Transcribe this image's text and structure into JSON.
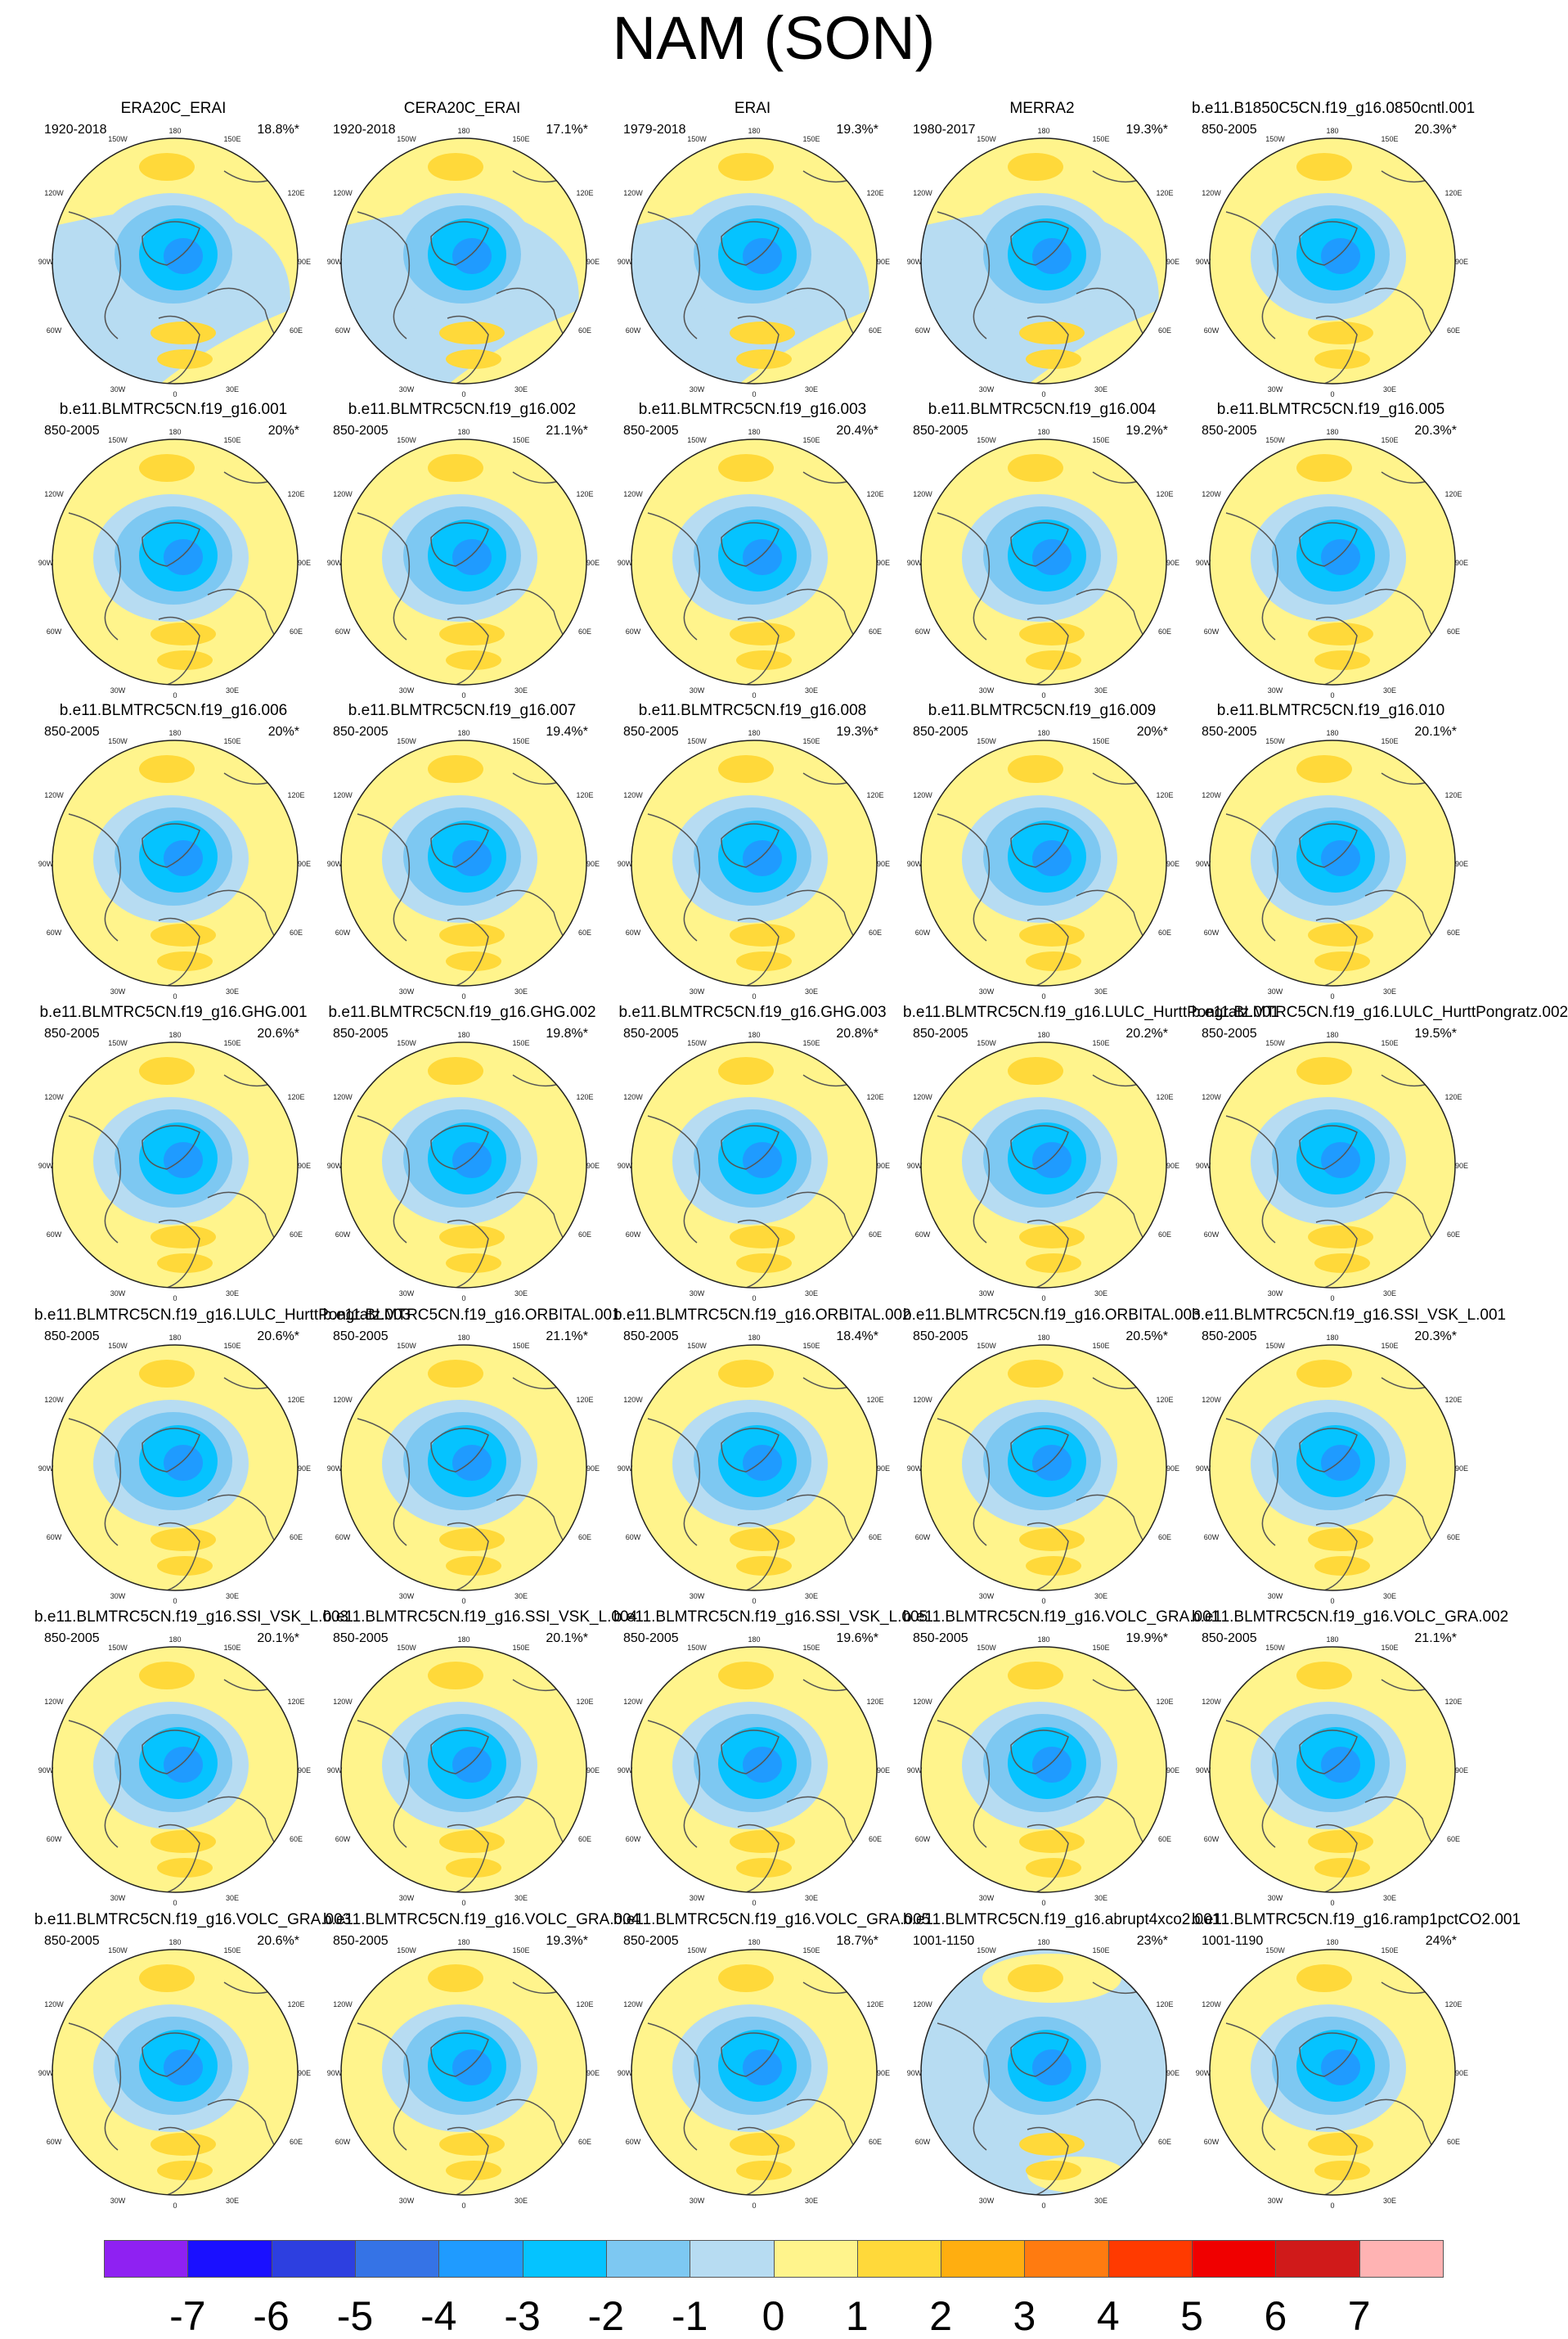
{
  "title": "NAM (SON)",
  "lon_labels": [
    "180",
    "150W",
    "150E",
    "120W",
    "120E",
    "90W",
    "90E",
    "60W",
    "60E",
    "30W",
    "30E",
    "0"
  ],
  "colors": {
    "land_line": "#555555",
    "grid_line": "#9a9a9a",
    "levels": [
      "#8f21f2",
      "#1a10ff",
      "#2d3fe0",
      "#3573e6",
      "#1f9bff",
      "#05c3ff",
      "#7dc8f2",
      "#b7dcf2",
      "#fff48c",
      "#ffd93a",
      "#ffae10",
      "#ff7b10",
      "#ff3a00",
      "#f00000",
      "#d01a1a",
      "#ffb3b3"
    ]
  },
  "colorbar": {
    "labels": [
      "-7",
      "-6",
      "-5",
      "-4",
      "-3",
      "-2",
      "-1",
      "0",
      "1",
      "2",
      "3",
      "4",
      "5",
      "6",
      "7"
    ]
  },
  "panels": [
    {
      "name": "ERA20C_ERAI",
      "period": "1920-2018",
      "pct": "18.8%*"
    },
    {
      "name": "CERA20C_ERAI",
      "period": "1920-2018",
      "pct": "17.1%*"
    },
    {
      "name": "ERAI",
      "period": "1979-2018",
      "pct": "19.3%*"
    },
    {
      "name": "MERRA2",
      "period": "1980-2017",
      "pct": "19.3%*"
    },
    {
      "name": "b.e11.B1850C5CN.f19_g16.0850cntl.001",
      "period": "850-2005",
      "pct": "20.3%*"
    },
    {
      "name": "b.e11.BLMTRC5CN.f19_g16.001",
      "period": "850-2005",
      "pct": "20%*"
    },
    {
      "name": "b.e11.BLMTRC5CN.f19_g16.002",
      "period": "850-2005",
      "pct": "21.1%*"
    },
    {
      "name": "b.e11.BLMTRC5CN.f19_g16.003",
      "period": "850-2005",
      "pct": "20.4%*"
    },
    {
      "name": "b.e11.BLMTRC5CN.f19_g16.004",
      "period": "850-2005",
      "pct": "19.2%*"
    },
    {
      "name": "b.e11.BLMTRC5CN.f19_g16.005",
      "period": "850-2005",
      "pct": "20.3%*"
    },
    {
      "name": "b.e11.BLMTRC5CN.f19_g16.006",
      "period": "850-2005",
      "pct": "20%*"
    },
    {
      "name": "b.e11.BLMTRC5CN.f19_g16.007",
      "period": "850-2005",
      "pct": "19.4%*"
    },
    {
      "name": "b.e11.BLMTRC5CN.f19_g16.008",
      "period": "850-2005",
      "pct": "19.3%*"
    },
    {
      "name": "b.e11.BLMTRC5CN.f19_g16.009",
      "period": "850-2005",
      "pct": "20%*"
    },
    {
      "name": "b.e11.BLMTRC5CN.f19_g16.010",
      "period": "850-2005",
      "pct": "20.1%*"
    },
    {
      "name": "b.e11.BLMTRC5CN.f19_g16.GHG.001",
      "period": "850-2005",
      "pct": "20.6%*"
    },
    {
      "name": "b.e11.BLMTRC5CN.f19_g16.GHG.002",
      "period": "850-2005",
      "pct": "19.8%*"
    },
    {
      "name": "b.e11.BLMTRC5CN.f19_g16.GHG.003",
      "period": "850-2005",
      "pct": "20.8%*"
    },
    {
      "name": "b.e11.BLMTRC5CN.f19_g16.LULC_HurttPongratz.001",
      "period": "850-2005",
      "pct": "20.2%*"
    },
    {
      "name": "b.e11.BLMTRC5CN.f19_g16.LULC_HurttPongratz.002",
      "period": "850-2005",
      "pct": "19.5%*"
    },
    {
      "name": "b.e11.BLMTRC5CN.f19_g16.LULC_HurttPongratz.003",
      "period": "850-2005",
      "pct": "20.6%*"
    },
    {
      "name": "b.e11.BLMTRC5CN.f19_g16.ORBITAL.001",
      "period": "850-2005",
      "pct": "21.1%*"
    },
    {
      "name": "b.e11.BLMTRC5CN.f19_g16.ORBITAL.002",
      "period": "850-2005",
      "pct": "18.4%*"
    },
    {
      "name": "b.e11.BLMTRC5CN.f19_g16.ORBITAL.003",
      "period": "850-2005",
      "pct": "20.5%*"
    },
    {
      "name": "b.e11.BLMTRC5CN.f19_g16.SSI_VSK_L.001",
      "period": "850-2005",
      "pct": "20.3%*"
    },
    {
      "name": "b.e11.BLMTRC5CN.f19_g16.SSI_VSK_L.003",
      "period": "850-2005",
      "pct": "20.1%*"
    },
    {
      "name": "b.e11.BLMTRC5CN.f19_g16.SSI_VSK_L.004",
      "period": "850-2005",
      "pct": "20.1%*"
    },
    {
      "name": "b.e11.BLMTRC5CN.f19_g16.SSI_VSK_L.005",
      "period": "850-2005",
      "pct": "19.6%*"
    },
    {
      "name": "b.e11.BLMTRC5CN.f19_g16.VOLC_GRA.001",
      "period": "850-2005",
      "pct": "19.9%*"
    },
    {
      "name": "b.e11.BLMTRC5CN.f19_g16.VOLC_GRA.002",
      "period": "850-2005",
      "pct": "21.1%*"
    },
    {
      "name": "b.e11.BLMTRC5CN.f19_g16.VOLC_GRA.003",
      "period": "850-2005",
      "pct": "20.6%*"
    },
    {
      "name": "b.e11.BLMTRC5CN.f19_g16.VOLC_GRA.004",
      "period": "850-2005",
      "pct": "19.3%*"
    },
    {
      "name": "b.e11.BLMTRC5CN.f19_g16.VOLC_GRA.005",
      "period": "850-2005",
      "pct": "18.7%*"
    },
    {
      "name": "b.e11.BLMTRC5CN.f19_g16.abrupt4xco2.001",
      "period": "1001-1150",
      "pct": "23%*"
    },
    {
      "name": "b.e11.BLMTRC5CN.f19_g16.ramp1pctCO2.001",
      "period": "1001-1190",
      "pct": "24%*"
    }
  ]
}
